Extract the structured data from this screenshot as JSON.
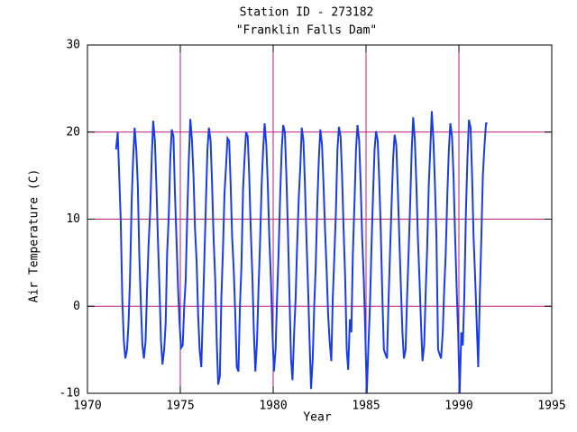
{
  "chart_data": {
    "type": "line",
    "title": "Station ID - 273182",
    "subtitle": "\"Franklin Falls Dam\"",
    "x_label": "Year",
    "y_label": "Air Temperature (C)",
    "xlim": [
      1970,
      1995
    ],
    "xticks": [
      1970,
      1975,
      1980,
      1985,
      1990,
      1995
    ],
    "ylim": [
      -10,
      30
    ],
    "yticks": [
      -10,
      0,
      10,
      20,
      30
    ],
    "grid": true,
    "grid_color": "#c0187a",
    "series": [
      {
        "color": "#1a3ce6",
        "x": [
          1971.54,
          1971.63,
          1971.71,
          1971.79,
          1971.88,
          1971.96,
          1972.04,
          1972.13,
          1972.21,
          1972.29,
          1972.38,
          1972.46,
          1972.54,
          1972.63,
          1972.71,
          1972.79,
          1972.88,
          1972.96,
          1973.04,
          1973.13,
          1973.21,
          1973.29,
          1973.38,
          1973.46,
          1973.54,
          1973.63,
          1973.71,
          1973.79,
          1973.88,
          1973.96,
          1974.04,
          1974.13,
          1974.21,
          1974.29,
          1974.38,
          1974.46,
          1974.54,
          1974.63,
          1974.71,
          1974.79,
          1974.88,
          1974.96,
          1975.04,
          1975.13,
          1975.21,
          1975.29,
          1975.38,
          1975.46,
          1975.54,
          1975.63,
          1975.71,
          1975.79,
          1975.88,
          1975.96,
          1976.04,
          1976.13,
          1976.21,
          1976.29,
          1976.38,
          1976.46,
          1976.54,
          1976.63,
          1976.71,
          1976.79,
          1976.88,
          1976.96,
          1977.04,
          1977.13,
          1977.21,
          1977.29,
          1977.38,
          1977.46,
          1977.54,
          1977.63,
          1977.71,
          1977.79,
          1977.88,
          1977.96,
          1978.04,
          1978.13,
          1978.21,
          1978.29,
          1978.38,
          1978.46,
          1978.54,
          1978.63,
          1978.71,
          1978.79,
          1978.88,
          1978.96,
          1979.04,
          1979.13,
          1979.21,
          1979.29,
          1979.38,
          1979.46,
          1979.54,
          1979.63,
          1979.71,
          1979.79,
          1979.88,
          1979.96,
          1980.04,
          1980.13,
          1980.21,
          1980.29,
          1980.38,
          1980.46,
          1980.54,
          1980.63,
          1980.71,
          1980.79,
          1980.88,
          1980.96,
          1981.04,
          1981.13,
          1981.21,
          1981.29,
          1981.38,
          1981.46,
          1981.54,
          1981.63,
          1981.71,
          1981.79,
          1981.88,
          1981.96,
          1982.04,
          1982.13,
          1982.21,
          1982.29,
          1982.38,
          1982.46,
          1982.54,
          1982.63,
          1982.71,
          1982.79,
          1982.88,
          1982.96,
          1983.04,
          1983.13,
          1983.21,
          1983.29,
          1983.38,
          1983.46,
          1983.54,
          1983.63,
          1983.71,
          1983.79,
          1983.88,
          1983.96,
          1984.04,
          1984.13,
          1984.21,
          1984.29,
          1984.38,
          1984.46,
          1984.54,
          1984.63,
          1984.71,
          1984.79,
          1984.88,
          1984.96,
          1985.04,
          1985.13,
          1985.21,
          1985.29,
          1985.38,
          1985.46,
          1985.54,
          1985.63,
          1985.71,
          1985.79,
          1985.88,
          1985.96,
          1986.04,
          1986.13,
          1986.21,
          1986.29,
          1986.38,
          1986.46,
          1986.54,
          1986.63,
          1986.71,
          1986.79,
          1986.88,
          1986.96,
          1987.04,
          1987.13,
          1987.21,
          1987.29,
          1987.38,
          1987.46,
          1987.54,
          1987.63,
          1987.71,
          1987.79,
          1987.88,
          1987.96,
          1988.04,
          1988.13,
          1988.21,
          1988.29,
          1988.38,
          1988.46,
          1988.54,
          1988.63,
          1988.71,
          1988.79,
          1988.88,
          1988.96,
          1989.04,
          1989.13,
          1989.21,
          1989.29,
          1989.38,
          1989.46,
          1989.54,
          1989.63,
          1989.71,
          1989.79,
          1989.88,
          1989.96,
          1990.04,
          1990.13,
          1990.21,
          1990.29,
          1990.38,
          1990.46,
          1990.54,
          1990.63,
          1990.71,
          1990.79,
          1990.88,
          1990.96,
          1991.04,
          1991.13,
          1991.21,
          1991.29,
          1991.38,
          1991.46,
          1991.54
        ],
        "values": [
          18,
          20,
          15,
          10,
          0.5,
          -4,
          -6,
          -5,
          -2,
          3,
          12,
          17,
          20.5,
          18,
          14,
          6,
          0,
          -4.5,
          -6,
          -4,
          2,
          7,
          11,
          17,
          21.3,
          19,
          14,
          8,
          2,
          -4,
          -6.7,
          -5,
          -2,
          6,
          10.5,
          17,
          20.3,
          19.5,
          13,
          8,
          2,
          -2,
          -4.8,
          -4.5,
          0,
          3,
          11,
          17,
          21.5,
          19,
          15,
          9,
          5,
          -1,
          -5,
          -7,
          -1,
          5,
          12,
          18,
          20.5,
          19,
          14,
          8,
          3,
          -4,
          -9,
          -8,
          1,
          6,
          13,
          16,
          19.3,
          19,
          14,
          8,
          4,
          -1,
          -7,
          -7.5,
          0,
          4.5,
          13.5,
          17,
          20,
          19.5,
          15,
          9,
          3.5,
          -3,
          -7.5,
          -4,
          2,
          7,
          14,
          18,
          21,
          18.5,
          14,
          8,
          3,
          -3,
          -7.5,
          -5,
          1,
          6,
          13,
          18,
          20.8,
          20,
          15,
          9,
          1,
          -6,
          -8.5,
          -3,
          1,
          7,
          12.5,
          16,
          20.5,
          19,
          14,
          8,
          2,
          -4,
          -9.5,
          -6,
          0,
          4.5,
          12,
          17,
          20.3,
          18.5,
          14,
          9,
          4,
          -1,
          -4,
          -6.3,
          1,
          5.5,
          11,
          18,
          20.6,
          19.5,
          15,
          9,
          3,
          -5,
          -7.3,
          -1.5,
          -3,
          6,
          12,
          18,
          20.8,
          19,
          14,
          8,
          3,
          -3,
          -10,
          -4.5,
          0,
          6.5,
          13,
          18,
          20.1,
          19,
          14.5,
          9,
          1,
          -5,
          -5.5,
          -6,
          0.5,
          6,
          12,
          17,
          19.7,
          18.5,
          13.5,
          8,
          2,
          -3,
          -6,
          -5,
          1,
          6,
          12,
          18,
          21.7,
          19,
          14,
          8,
          3,
          -2,
          -6.3,
          -4.5,
          1.5,
          6.5,
          14,
          18,
          22.4,
          19,
          14,
          8,
          -5,
          -5.5,
          -6,
          -3,
          2,
          6,
          13,
          18,
          21,
          19.5,
          15,
          8.5,
          2,
          -3,
          -10,
          -3,
          -4.5,
          1,
          11,
          17,
          21.4,
          20.5,
          15,
          8,
          3,
          -2,
          -7,
          1.5,
          8,
          15,
          18.5,
          21,
          21
        ]
      }
    ]
  }
}
